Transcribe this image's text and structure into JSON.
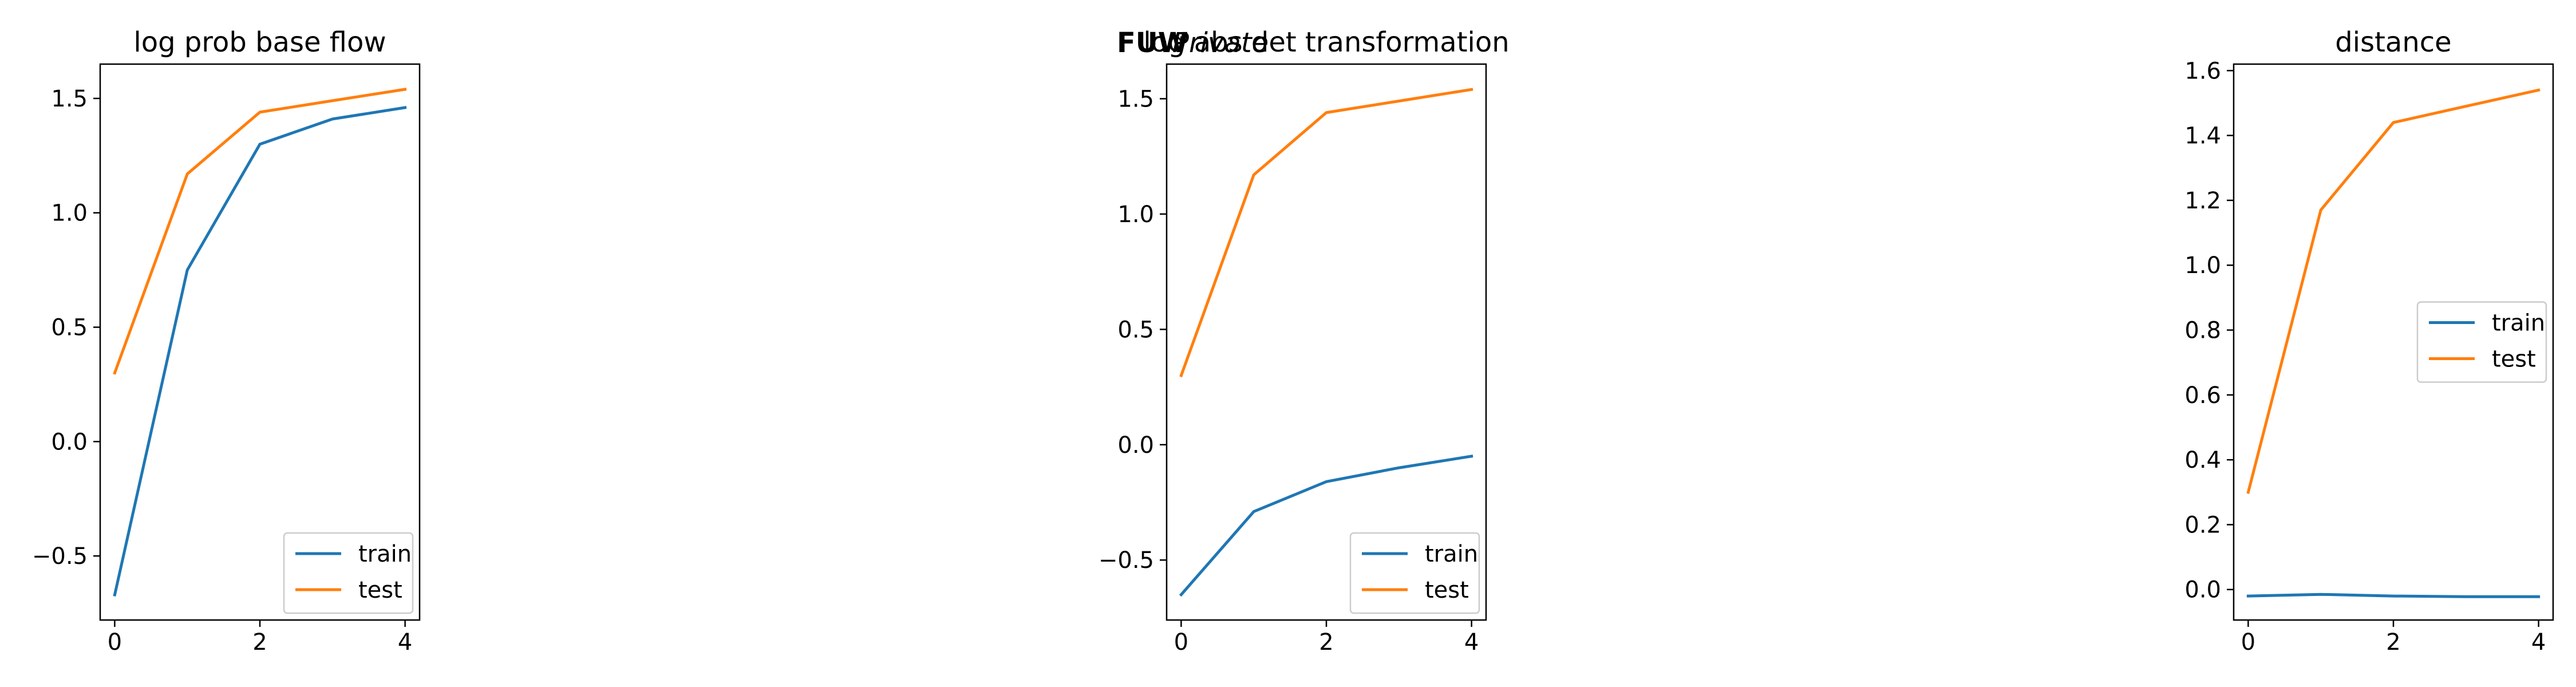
{
  "header": {
    "brand": "FUW",
    "subtitle": "Private"
  },
  "colors": {
    "train": "#1f77b4",
    "test": "#ff7f0e"
  },
  "chart_data": [
    {
      "type": "line",
      "title": "log prob base flow",
      "xlabel": "",
      "ylabel": "",
      "x": [
        0,
        1,
        2,
        3,
        4
      ],
      "xticks": [
        0,
        2,
        4
      ],
      "xlim": [
        -0.2,
        4.2
      ],
      "ylim": [
        -0.78,
        1.65
      ],
      "yticks": [
        -0.5,
        0.0,
        0.5,
        1.0,
        1.5
      ],
      "yticklabels": [
        "−0.5",
        "0.0",
        "0.5",
        "1.0",
        "1.5"
      ],
      "legend_position": "lower-right",
      "grid": false,
      "series": [
        {
          "name": "train",
          "color": "#1f77b4",
          "values": [
            -0.67,
            0.75,
            1.3,
            1.41,
            1.46
          ]
        },
        {
          "name": "test",
          "color": "#ff7f0e",
          "values": [
            0.3,
            1.17,
            1.44,
            1.49,
            1.54
          ]
        }
      ]
    },
    {
      "type": "line",
      "title": "log abs det transformation",
      "xlabel": "",
      "ylabel": "",
      "x": [
        0,
        1,
        2,
        3,
        4
      ],
      "xticks": [
        0,
        2,
        4
      ],
      "xlim": [
        -0.2,
        4.2
      ],
      "ylim": [
        -0.76,
        1.65
      ],
      "yticks": [
        -0.5,
        0.0,
        0.5,
        1.0,
        1.5
      ],
      "yticklabels": [
        "−0.5",
        "0.0",
        "0.5",
        "1.0",
        "1.5"
      ],
      "legend_position": "lower-right",
      "grid": false,
      "series": [
        {
          "name": "train",
          "color": "#1f77b4",
          "values": [
            -0.65,
            -0.29,
            -0.16,
            -0.1,
            -0.05
          ]
        },
        {
          "name": "test",
          "color": "#ff7f0e",
          "values": [
            0.3,
            1.17,
            1.44,
            1.49,
            1.54
          ]
        }
      ]
    },
    {
      "type": "line",
      "title": "distance",
      "xlabel": "",
      "ylabel": "",
      "x": [
        0,
        1,
        2,
        3,
        4
      ],
      "xticks": [
        0,
        2,
        4
      ],
      "xlim": [
        -0.2,
        4.2
      ],
      "ylim": [
        -0.094,
        1.62
      ],
      "yticks": [
        0.0,
        0.2,
        0.4,
        0.6,
        0.8,
        1.0,
        1.2,
        1.4,
        1.6
      ],
      "yticklabels": [
        "0.0",
        "0.2",
        "0.4",
        "0.6",
        "0.8",
        "1.0",
        "1.2",
        "1.4",
        "1.6"
      ],
      "legend_position": "center-right",
      "grid": false,
      "series": [
        {
          "name": "train",
          "color": "#1f77b4",
          "values": [
            -0.02,
            -0.015,
            -0.02,
            -0.022,
            -0.022
          ]
        },
        {
          "name": "test",
          "color": "#ff7f0e",
          "values": [
            0.3,
            1.17,
            1.44,
            1.49,
            1.54
          ]
        }
      ]
    }
  ]
}
